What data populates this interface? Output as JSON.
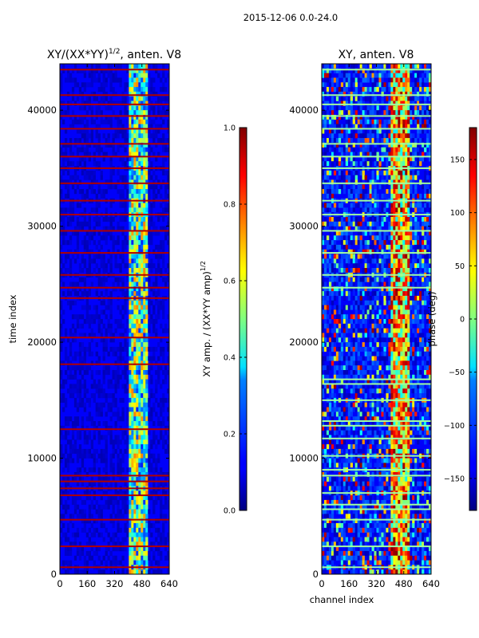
{
  "suptitle": "2015-12-06 0.0-24.0",
  "chart_data": [
    {
      "type": "heatmap",
      "title_main": "XY/(XX*YY)",
      "title_sup": "1/2",
      "title_rest": ", anten. V8",
      "xlabel": "",
      "ylabel": "time index",
      "xlim": [
        0,
        640
      ],
      "ylim": [
        0,
        44000
      ],
      "xticks": [
        0,
        160,
        320,
        480,
        640
      ],
      "yticks": [
        0,
        10000,
        20000,
        30000,
        40000
      ],
      "colorbar": {
        "label_main": "XY amp. / (XX*YY amp)",
        "label_sup": "1/2",
        "range": [
          0.0,
          1.0
        ],
        "ticks": [
          0.0,
          0.2,
          0.4,
          0.6,
          0.8,
          1.0
        ],
        "tick_labels": [
          "0.0",
          "0.2",
          "0.4",
          "0.6",
          "0.8",
          "1.0"
        ]
      },
      "bright_channel_band": [
        400,
        520
      ],
      "flagged_time_rows": [
        600,
        2400,
        4700,
        6800,
        7400,
        8000,
        8500,
        12500,
        18100,
        20400,
        23800,
        24700,
        25800,
        27700,
        29600,
        31000,
        32200,
        33700,
        35000,
        36000,
        37100,
        38400,
        39500,
        40500,
        41300,
        43500
      ]
    },
    {
      "type": "heatmap",
      "title": "XY, anten. V8",
      "xlabel": "channel index",
      "ylabel": "",
      "xlim": [
        0,
        640
      ],
      "ylim": [
        0,
        44000
      ],
      "xticks": [
        0,
        160,
        320,
        480,
        640
      ],
      "yticks": [
        0,
        10000,
        20000,
        30000,
        40000
      ],
      "colorbar": {
        "label": "phase (deg)",
        "range": [
          -180,
          180
        ],
        "ticks": [
          150,
          100,
          50,
          0,
          -50,
          -100,
          -150
        ],
        "tick_labels": [
          "150",
          "100",
          "50",
          "0",
          "−50",
          "−100",
          "−150"
        ]
      },
      "bright_channel_band": [
        400,
        520
      ],
      "flagged_time_rows": [
        600,
        2400,
        4700,
        5600,
        6000,
        7000,
        8500,
        9000,
        10200,
        11700,
        12800,
        13200,
        15000,
        16400,
        16800,
        24700,
        25800,
        27700,
        29600,
        31000,
        32200,
        33700,
        35000,
        36000,
        37100,
        38400,
        39500,
        40500,
        41300,
        43500
      ]
    }
  ]
}
